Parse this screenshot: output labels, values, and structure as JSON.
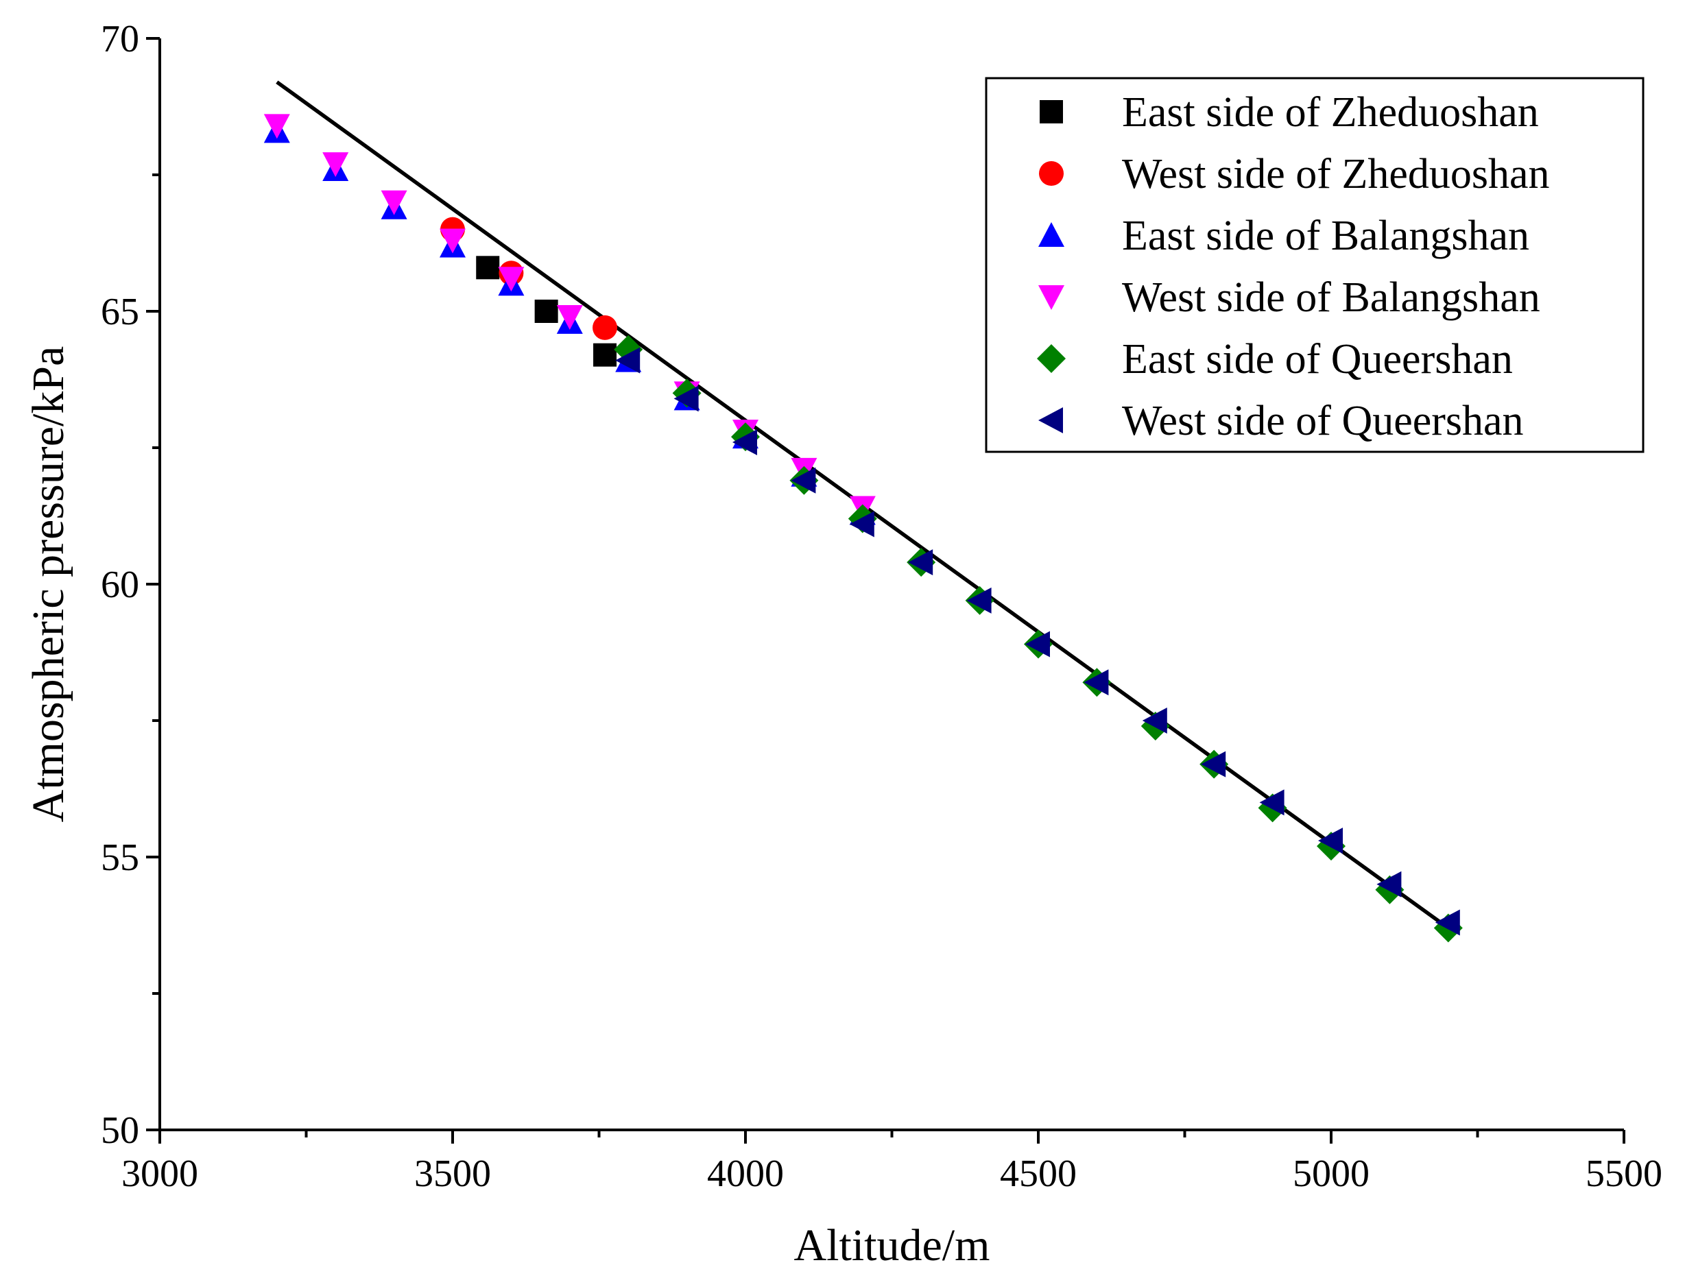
{
  "chart_data": {
    "type": "scatter",
    "title": "",
    "xlabel": "Altitude/m",
    "ylabel": "Atmospheric pressure/kPa",
    "xlim": [
      3000,
      5500
    ],
    "ylim": [
      50,
      70
    ],
    "x_ticks": [
      3000,
      3500,
      4000,
      4500,
      5000,
      5500
    ],
    "y_ticks": [
      50,
      55,
      60,
      65,
      70
    ],
    "x_tick_labels": [
      "3000",
      "3500",
      "4000",
      "4500",
      "5000",
      "5500"
    ],
    "y_tick_labels": [
      "50",
      "55",
      "60",
      "65",
      "70"
    ],
    "grid": false,
    "legend_position": "top-right",
    "fit_line": {
      "x": [
        3200,
        5200
      ],
      "y": [
        69.2,
        53.7
      ],
      "color": "#000000"
    },
    "series": [
      {
        "name": "East side of Zheduoshan",
        "marker": "square",
        "color": "#000000",
        "points": [
          [
            3560,
            65.8
          ],
          [
            3660,
            65.0
          ],
          [
            3760,
            64.2
          ]
        ]
      },
      {
        "name": "West side of Zheduoshan",
        "marker": "circle",
        "color": "#ff0000",
        "points": [
          [
            3500,
            66.5
          ],
          [
            3600,
            65.7
          ],
          [
            3760,
            64.7
          ]
        ]
      },
      {
        "name": "East side of Balangshan",
        "marker": "triangle-up",
        "color": "#0000ff",
        "points": [
          [
            3200,
            68.3
          ],
          [
            3300,
            67.6
          ],
          [
            3400,
            66.9
          ],
          [
            3500,
            66.2
          ],
          [
            3600,
            65.5
          ],
          [
            3700,
            64.8
          ],
          [
            3800,
            64.1
          ],
          [
            3900,
            63.4
          ],
          [
            4000,
            62.7
          ],
          [
            4100,
            62.0
          ],
          [
            4200,
            61.3
          ]
        ]
      },
      {
        "name": "West side of Balangshan",
        "marker": "triangle-down",
        "color": "#ff00ff",
        "points": [
          [
            3200,
            68.4
          ],
          [
            3300,
            67.7
          ],
          [
            3400,
            67.0
          ],
          [
            3500,
            66.3
          ],
          [
            3600,
            65.6
          ],
          [
            3700,
            64.9
          ],
          [
            3900,
            63.5
          ],
          [
            4000,
            62.8
          ],
          [
            4100,
            62.1
          ],
          [
            4200,
            61.4
          ]
        ]
      },
      {
        "name": "East side of Queershan",
        "marker": "diamond",
        "color": "#008000",
        "points": [
          [
            3800,
            64.3
          ],
          [
            3900,
            63.5
          ],
          [
            4000,
            62.7
          ],
          [
            4100,
            61.9
          ],
          [
            4200,
            61.2
          ],
          [
            4300,
            60.4
          ],
          [
            4400,
            59.7
          ],
          [
            4500,
            58.9
          ],
          [
            4600,
            58.2
          ],
          [
            4700,
            57.4
          ],
          [
            4800,
            56.7
          ],
          [
            4900,
            55.9
          ],
          [
            5000,
            55.2
          ],
          [
            5100,
            54.4
          ],
          [
            5200,
            53.7
          ]
        ]
      },
      {
        "name": "West side of Queershan",
        "marker": "triangle-left",
        "color": "#000080",
        "points": [
          [
            3800,
            64.1
          ],
          [
            3900,
            63.4
          ],
          [
            4000,
            62.6
          ],
          [
            4100,
            61.9
          ],
          [
            4200,
            61.1
          ],
          [
            4300,
            60.4
          ],
          [
            4400,
            59.7
          ],
          [
            4500,
            58.9
          ],
          [
            4600,
            58.2
          ],
          [
            4700,
            57.5
          ],
          [
            4800,
            56.7
          ],
          [
            4900,
            56.0
          ],
          [
            5000,
            55.3
          ],
          [
            5100,
            54.5
          ],
          [
            5200,
            53.8
          ]
        ]
      }
    ]
  }
}
